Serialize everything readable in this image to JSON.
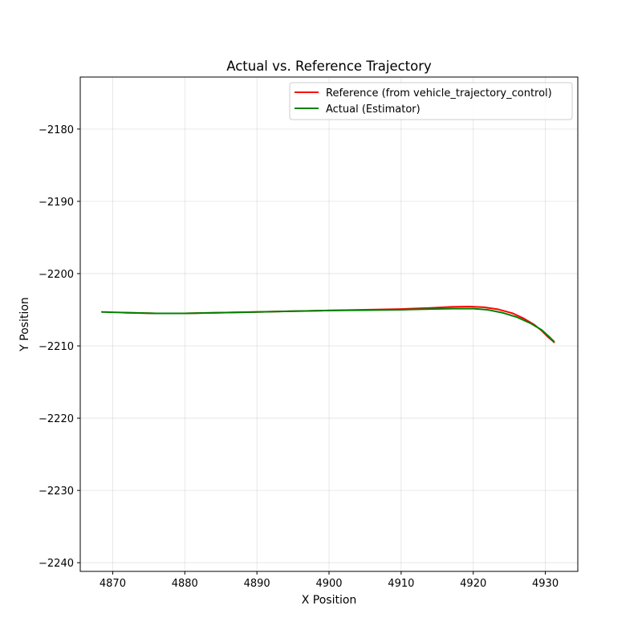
{
  "chart_data": {
    "type": "line",
    "title": "Actual vs. Reference Trajectory",
    "xlabel": "X Position",
    "ylabel": "Y Position",
    "xlim": [
      4865.5,
      4934.5
    ],
    "ylim": [
      -2241.2,
      -2172.8
    ],
    "xticks": [
      4870,
      4880,
      4890,
      4900,
      4910,
      4920,
      4930
    ],
    "yticks": [
      -2180,
      -2190,
      -2200,
      -2210,
      -2220,
      -2230,
      -2240
    ],
    "xtick_labels": [
      "4870",
      "4880",
      "4890",
      "4900",
      "4910",
      "4920",
      "4930"
    ],
    "ytick_labels": [
      "−2180",
      "−2190",
      "−2200",
      "−2210",
      "−2220",
      "−2230",
      "−2240"
    ],
    "grid": true,
    "legend_position": "top-right",
    "series": [
      {
        "name": "Reference (from vehicle_trajectory_control)",
        "color": "#ff0000",
        "x": [
          4871.5,
          4876,
          4880,
          4885,
          4890,
          4895,
          4900,
          4905,
          4910,
          4914,
          4917,
          4919.5,
          4921.5,
          4923.5,
          4925.5,
          4927,
          4928.5,
          4929.5,
          4930.3,
          4931,
          4931.2
        ],
        "y": [
          -2205.4,
          -2205.5,
          -2205.5,
          -2205.4,
          -2205.3,
          -2205.2,
          -2205.1,
          -2205.0,
          -2204.9,
          -2204.75,
          -2204.6,
          -2204.55,
          -2204.65,
          -2204.95,
          -2205.5,
          -2206.2,
          -2207.1,
          -2207.9,
          -2208.7,
          -2209.3,
          -2209.5
        ]
      },
      {
        "name": "Actual (Estimator)",
        "color": "#008000",
        "x": [
          4868.5,
          4872,
          4876,
          4880,
          4885,
          4890,
          4895,
          4900,
          4905,
          4910,
          4914,
          4917,
          4920,
          4922,
          4924,
          4926,
          4928,
          4929.5,
          4930.5,
          4931.2
        ],
        "y": [
          -2205.3,
          -2205.4,
          -2205.5,
          -2205.5,
          -2205.4,
          -2205.3,
          -2205.2,
          -2205.1,
          -2205.05,
          -2205.0,
          -2204.9,
          -2204.85,
          -2204.85,
          -2205.0,
          -2205.4,
          -2206.0,
          -2206.9,
          -2207.8,
          -2208.7,
          -2209.4
        ]
      }
    ]
  }
}
